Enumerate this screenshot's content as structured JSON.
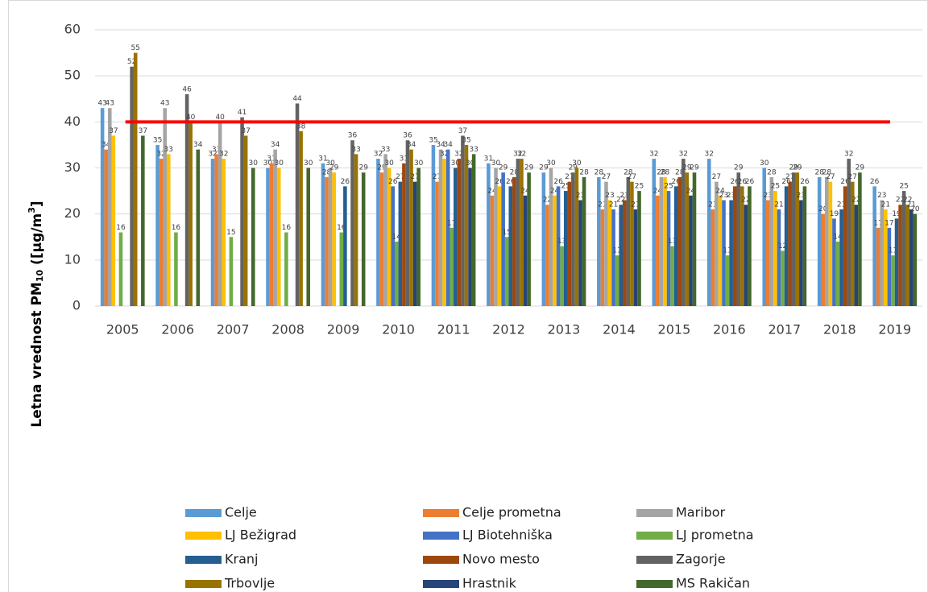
{
  "chart_data": {
    "type": "bar",
    "y_label_parts": [
      "Letna vrednost PM",
      "10",
      " ([µg/m",
      "3",
      "]"
    ],
    "categories": [
      "2005",
      "2006",
      "2007",
      "2008",
      "2009",
      "2010",
      "2011",
      "2012",
      "2013",
      "2014",
      "2015",
      "2016",
      "2017",
      "2018",
      "2019"
    ],
    "ylim": [
      0,
      60
    ],
    "yticks": [
      0,
      10,
      20,
      30,
      40,
      50,
      60
    ],
    "grid": true,
    "limit_line": {
      "value": 40,
      "color": "#ff0000"
    },
    "series": [
      {
        "name": "Celje",
        "color": "#5b9bd5",
        "values": [
          43,
          35,
          32,
          30,
          31,
          32,
          35,
          31,
          29,
          28,
          32,
          32,
          30,
          28,
          26
        ]
      },
      {
        "name": "Celje prometna",
        "color": "#ed7d31",
        "values": [
          34,
          32,
          33,
          31,
          28,
          29,
          27,
          24,
          22,
          21,
          24,
          21,
          23,
          20,
          17
        ]
      },
      {
        "name": "Maribor",
        "color": "#a5a5a5",
        "values": [
          43,
          43,
          40,
          34,
          30,
          33,
          34,
          30,
          30,
          27,
          28,
          27,
          28,
          28,
          23
        ]
      },
      {
        "name": "LJ Bežigrad",
        "color": "#ffc000",
        "values": [
          37,
          33,
          32,
          30,
          29,
          30,
          32,
          26,
          24,
          23,
          28,
          24,
          25,
          27,
          21
        ]
      },
      {
        "name": "LJ Biotehniška",
        "color": "#4472c4",
        "values": [
          null,
          null,
          null,
          null,
          null,
          26,
          34,
          29,
          26,
          21,
          25,
          23,
          21,
          19,
          17
        ]
      },
      {
        "name": "LJ prometna",
        "color": "#70ad47",
        "values": [
          16,
          16,
          15,
          16,
          16,
          14,
          17,
          15,
          13,
          11,
          13,
          11,
          12,
          14,
          11
        ]
      },
      {
        "name": "Kranj",
        "color": "#255e91",
        "values": [
          null,
          null,
          null,
          null,
          26,
          27,
          30,
          26,
          25,
          22,
          26,
          23,
          26,
          21,
          19
        ]
      },
      {
        "name": "Novo mesto",
        "color": "#9e480e",
        "values": [
          null,
          null,
          null,
          null,
          null,
          31,
          32,
          28,
          27,
          23,
          28,
          26,
          27,
          26,
          22
        ]
      },
      {
        "name": "Zagorje",
        "color": "#636363",
        "values": [
          52,
          46,
          41,
          44,
          36,
          36,
          37,
          32,
          29,
          28,
          32,
          29,
          29,
          32,
          25
        ]
      },
      {
        "name": "Trbovlje",
        "color": "#997300",
        "values": [
          55,
          40,
          37,
          38,
          33,
          34,
          35,
          32,
          30,
          27,
          29,
          26,
          29,
          27,
          22
        ]
      },
      {
        "name": "Hrastnik",
        "color": "#264478",
        "values": [
          null,
          null,
          null,
          null,
          null,
          27,
          30,
          24,
          23,
          21,
          24,
          22,
          23,
          22,
          21
        ]
      },
      {
        "name": "MS Rakičan",
        "color": "#43682b",
        "values": [
          37,
          34,
          30,
          30,
          29,
          30,
          33,
          29,
          28,
          25,
          29,
          26,
          26,
          29,
          20
        ]
      }
    ]
  }
}
